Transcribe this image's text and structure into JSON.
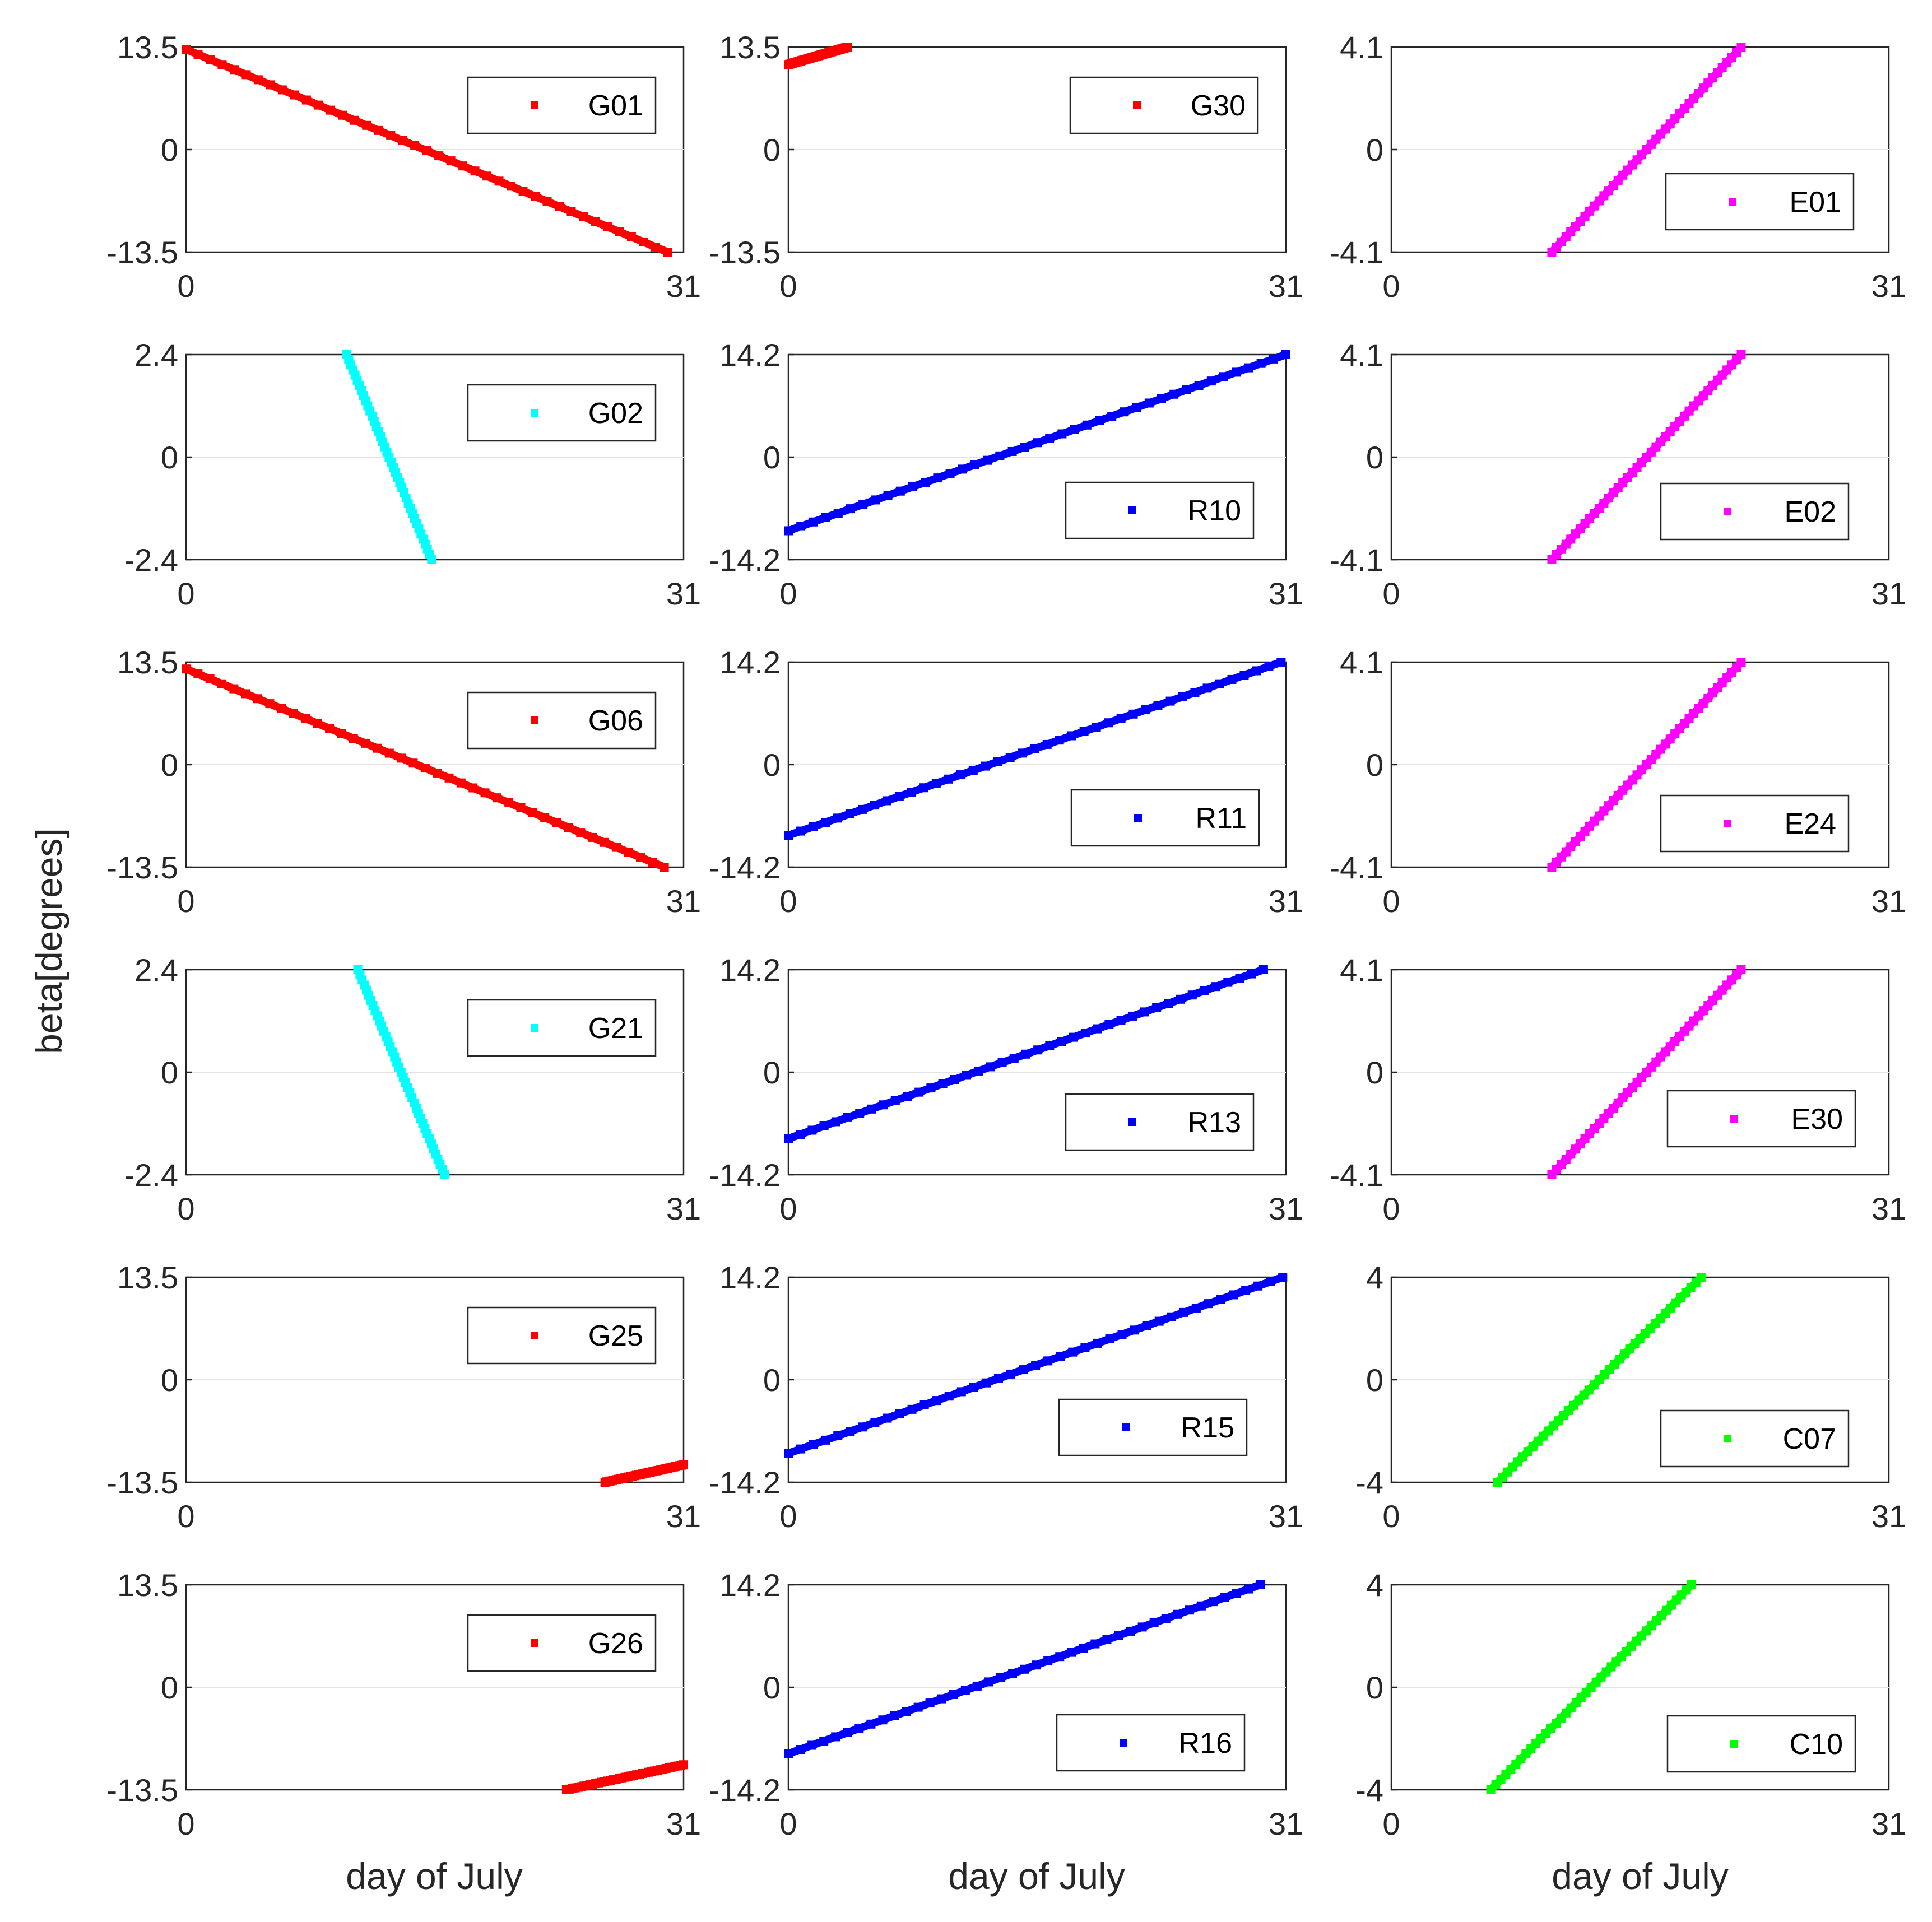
{
  "figure": {
    "ylabel": "beta[degrees]",
    "xlabels": [
      "day of July",
      "day of July",
      "day of July"
    ]
  },
  "chart_data": [
    {
      "type": "scatter",
      "x_ticks": [
        "0",
        "31"
      ],
      "y_ticks": [
        "-13.5",
        "0",
        "13.5"
      ],
      "xlim": [
        0,
        31
      ],
      "ylim": [
        -13.5,
        13.5
      ],
      "grid": "y-zero",
      "legend": "right",
      "series": [
        {
          "name": "G01",
          "color": "#ff0000",
          "x": [
            0,
            30
          ],
          "y": [
            13.2,
            -13.5
          ]
        }
      ]
    },
    {
      "type": "scatter",
      "x_ticks": [
        "0",
        "31"
      ],
      "y_ticks": [
        "-13.5",
        "0",
        "13.5"
      ],
      "xlim": [
        0,
        31
      ],
      "ylim": [
        -13.5,
        13.5
      ],
      "grid": "y-zero",
      "legend": "right",
      "series": [
        {
          "name": "G30",
          "color": "#ff0000",
          "x": [
            0,
            3.7
          ],
          "y": [
            11.2,
            13.5
          ]
        }
      ]
    },
    {
      "type": "scatter",
      "x_ticks": [
        "0",
        "31"
      ],
      "y_ticks": [
        "-4.1",
        "0",
        "4.1"
      ],
      "xlim": [
        0,
        31
      ],
      "ylim": [
        -4.1,
        4.1
      ],
      "grid": "y-zero",
      "legend": "right",
      "series": [
        {
          "name": "E01",
          "color": "#ff00ff",
          "x": [
            10,
            21.8
          ],
          "y": [
            -4.1,
            4.1
          ]
        }
      ]
    },
    {
      "type": "scatter",
      "x_ticks": [
        "0",
        "31"
      ],
      "y_ticks": [
        "-2.4",
        "0",
        "2.4"
      ],
      "xlim": [
        0,
        31
      ],
      "ylim": [
        -2.4,
        2.4
      ],
      "grid": "y-zero",
      "legend": "right",
      "series": [
        {
          "name": "G02",
          "color": "#00ffff",
          "x": [
            10,
            15.3
          ],
          "y": [
            2.4,
            -2.4
          ]
        }
      ]
    },
    {
      "type": "scatter",
      "x_ticks": [
        "0",
        "31"
      ],
      "y_ticks": [
        "-14.2",
        "0",
        "14.2"
      ],
      "xlim": [
        0,
        31
      ],
      "ylim": [
        -14.2,
        14.2
      ],
      "grid": "y-zero",
      "legend": "right",
      "series": [
        {
          "name": "R10",
          "color": "#0000ff",
          "x": [
            0,
            31
          ],
          "y": [
            -10.2,
            14.2
          ]
        }
      ]
    },
    {
      "type": "scatter",
      "x_ticks": [
        "0",
        "31"
      ],
      "y_ticks": [
        "-4.1",
        "0",
        "4.1"
      ],
      "xlim": [
        0,
        31
      ],
      "ylim": [
        -4.1,
        4.1
      ],
      "grid": "y-zero",
      "legend": "right",
      "series": [
        {
          "name": "E02",
          "color": "#ff00ff",
          "x": [
            10,
            21.8
          ],
          "y": [
            -4.1,
            4.1
          ]
        }
      ]
    },
    {
      "type": "scatter",
      "x_ticks": [
        "0",
        "31"
      ],
      "y_ticks": [
        "-13.5",
        "0",
        "13.5"
      ],
      "xlim": [
        0,
        31
      ],
      "ylim": [
        -13.5,
        13.5
      ],
      "grid": "y-zero",
      "legend": "right",
      "series": [
        {
          "name": "G06",
          "color": "#ff0000",
          "x": [
            0,
            29.8
          ],
          "y": [
            12.6,
            -13.5
          ]
        }
      ]
    },
    {
      "type": "scatter",
      "x_ticks": [
        "0",
        "31"
      ],
      "y_ticks": [
        "-14.2",
        "0",
        "14.2"
      ],
      "xlim": [
        0,
        31
      ],
      "ylim": [
        -14.2,
        14.2
      ],
      "grid": "y-zero",
      "legend": "right",
      "series": [
        {
          "name": "R11",
          "color": "#0000ff",
          "x": [
            0,
            30.7
          ],
          "y": [
            -9.8,
            14.2
          ]
        }
      ]
    },
    {
      "type": "scatter",
      "x_ticks": [
        "0",
        "31"
      ],
      "y_ticks": [
        "-4.1",
        "0",
        "4.1"
      ],
      "xlim": [
        0,
        31
      ],
      "ylim": [
        -4.1,
        4.1
      ],
      "grid": "y-zero",
      "legend": "right",
      "series": [
        {
          "name": "E24",
          "color": "#ff00ff",
          "x": [
            10,
            21.8
          ],
          "y": [
            -4.1,
            4.1
          ]
        }
      ]
    },
    {
      "type": "scatter",
      "x_ticks": [
        "0",
        "31"
      ],
      "y_ticks": [
        "-2.4",
        "0",
        "2.4"
      ],
      "xlim": [
        0,
        31
      ],
      "ylim": [
        -2.4,
        2.4
      ],
      "grid": "y-zero",
      "legend": "right",
      "series": [
        {
          "name": "G21",
          "color": "#00ffff",
          "x": [
            10.7,
            16.1
          ],
          "y": [
            2.4,
            -2.4
          ]
        }
      ]
    },
    {
      "type": "scatter",
      "x_ticks": [
        "0",
        "31"
      ],
      "y_ticks": [
        "-14.2",
        "0",
        "14.2"
      ],
      "xlim": [
        0,
        31
      ],
      "ylim": [
        -14.2,
        14.2
      ],
      "grid": "y-zero",
      "legend": "right",
      "series": [
        {
          "name": "R13",
          "color": "#0000ff",
          "x": [
            0,
            29.6
          ],
          "y": [
            -9.2,
            14.2
          ]
        }
      ]
    },
    {
      "type": "scatter",
      "x_ticks": [
        "0",
        "31"
      ],
      "y_ticks": [
        "-4.1",
        "0",
        "4.1"
      ],
      "xlim": [
        0,
        31
      ],
      "ylim": [
        -4.1,
        4.1
      ],
      "grid": "y-zero",
      "legend": "right",
      "series": [
        {
          "name": "E30",
          "color": "#ff00ff",
          "x": [
            10,
            21.8
          ],
          "y": [
            -4.1,
            4.1
          ]
        }
      ]
    },
    {
      "type": "scatter",
      "x_ticks": [
        "0",
        "31"
      ],
      "y_ticks": [
        "-13.5",
        "0",
        "13.5"
      ],
      "xlim": [
        0,
        31
      ],
      "ylim": [
        -13.5,
        13.5
      ],
      "grid": "y-zero",
      "legend": "right",
      "series": [
        {
          "name": "G25",
          "color": "#ff0000",
          "x": [
            26.1,
            31
          ],
          "y": [
            -13.5,
            -11.2
          ]
        }
      ]
    },
    {
      "type": "scatter",
      "x_ticks": [
        "0",
        "31"
      ],
      "y_ticks": [
        "-14.2",
        "0",
        "14.2"
      ],
      "xlim": [
        0,
        31
      ],
      "ylim": [
        -14.2,
        14.2
      ],
      "grid": "y-zero",
      "legend": "right",
      "series": [
        {
          "name": "R15",
          "color": "#0000ff",
          "x": [
            0,
            30.8
          ],
          "y": [
            -10.2,
            14.2
          ]
        }
      ]
    },
    {
      "type": "scatter",
      "x_ticks": [
        "0",
        "31"
      ],
      "y_ticks": [
        "-4",
        "0",
        "4"
      ],
      "xlim": [
        0,
        31
      ],
      "ylim": [
        -4,
        4
      ],
      "grid": "y-zero",
      "legend": "right",
      "series": [
        {
          "name": "C07",
          "color": "#00ff00",
          "x": [
            6.6,
            19.3
          ],
          "y": [
            -4,
            4
          ]
        }
      ]
    },
    {
      "type": "scatter",
      "x_ticks": [
        "0",
        "31"
      ],
      "y_ticks": [
        "-13.5",
        "0",
        "13.5"
      ],
      "xlim": [
        0,
        31
      ],
      "ylim": [
        -13.5,
        13.5
      ],
      "grid": "y-zero",
      "legend": "right",
      "series": [
        {
          "name": "G26",
          "color": "#ff0000",
          "x": [
            23.7,
            31
          ],
          "y": [
            -13.5,
            -10.2
          ]
        }
      ]
    },
    {
      "type": "scatter",
      "x_ticks": [
        "0",
        "31"
      ],
      "y_ticks": [
        "-14.2",
        "0",
        "14.2"
      ],
      "xlim": [
        0,
        31
      ],
      "ylim": [
        -14.2,
        14.2
      ],
      "grid": "y-zero",
      "legend": "right",
      "series": [
        {
          "name": "R16",
          "color": "#0000ff",
          "x": [
            0,
            29.4
          ],
          "y": [
            -9.2,
            14.2
          ]
        }
      ]
    },
    {
      "type": "scatter",
      "x_ticks": [
        "0",
        "31"
      ],
      "y_ticks": [
        "-4",
        "0",
        "4"
      ],
      "xlim": [
        0,
        31
      ],
      "ylim": [
        -4,
        4
      ],
      "grid": "y-zero",
      "legend": "right",
      "series": [
        {
          "name": "C10",
          "color": "#00ff00",
          "x": [
            6.2,
            18.7
          ],
          "y": [
            -4,
            4
          ]
        }
      ]
    }
  ]
}
